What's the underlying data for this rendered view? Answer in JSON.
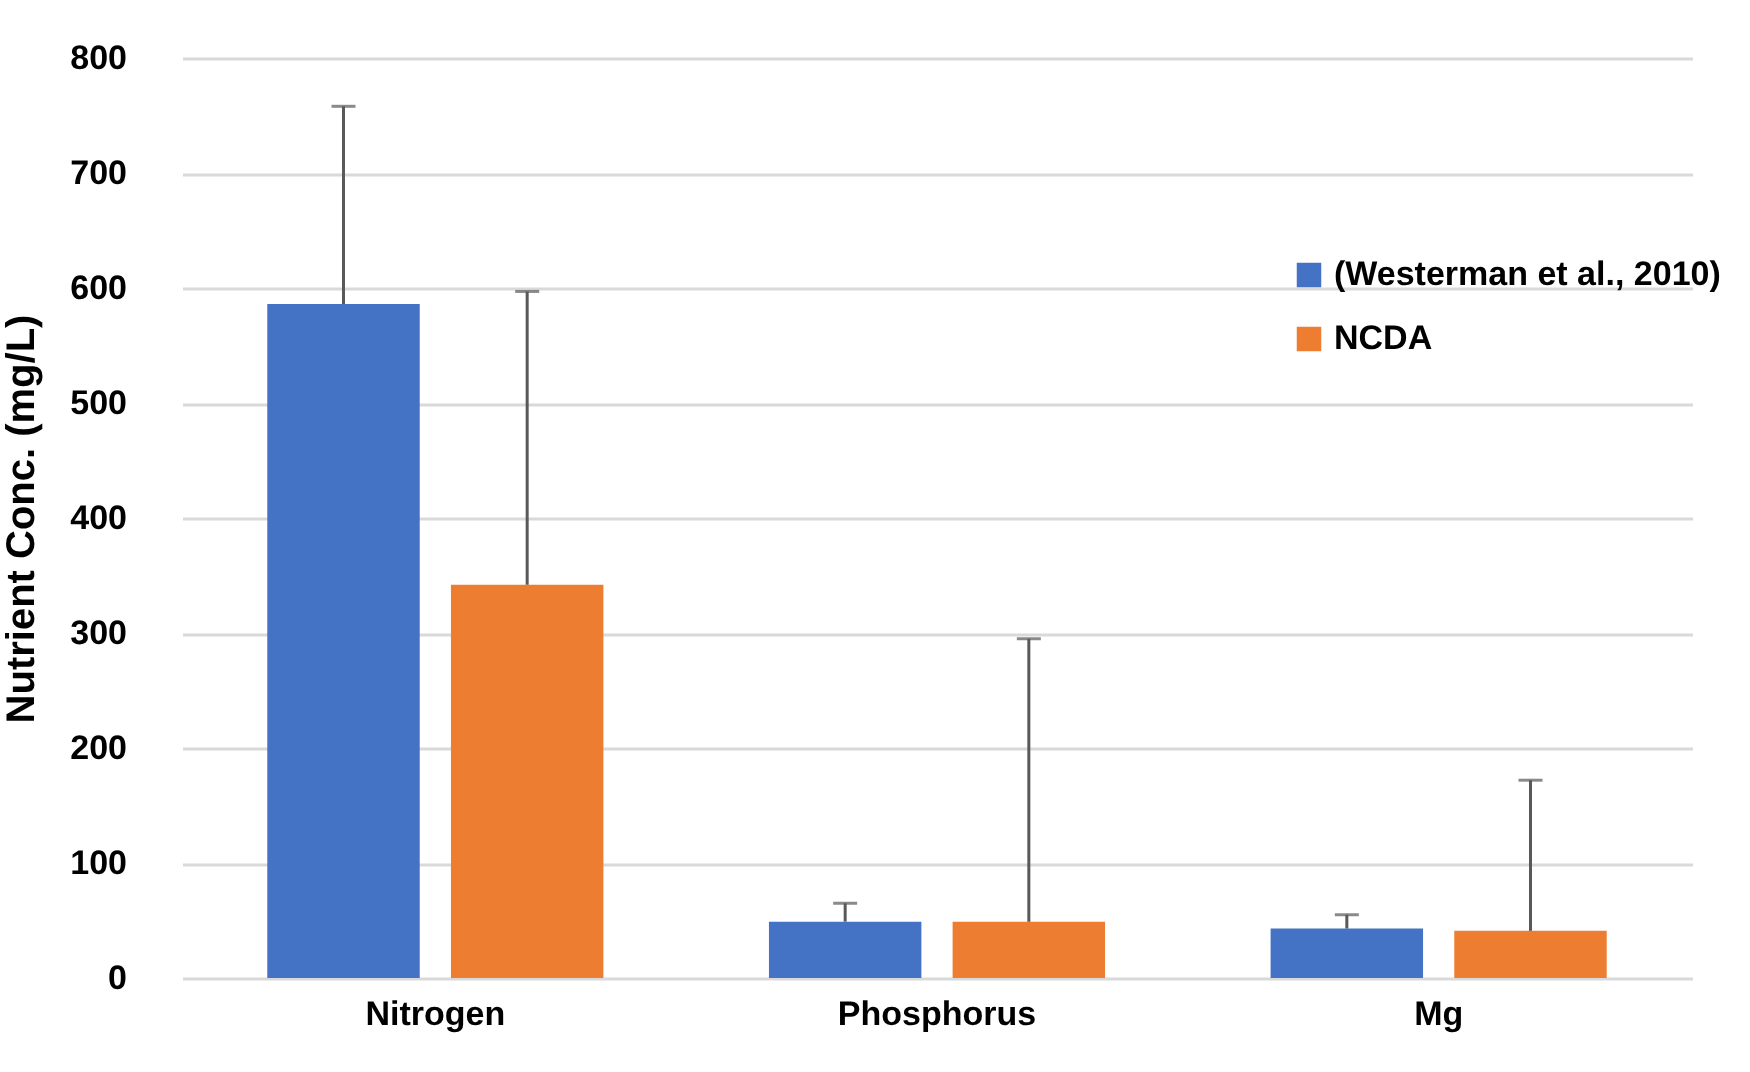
{
  "chart_data": {
    "type": "bar",
    "ylabel": "Nutrient Conc. (mg/L)",
    "categories": [
      "Nitrogen",
      "Phosphorus",
      "Mg"
    ],
    "series": [
      {
        "name": "(Westerman et al., 2010)",
        "color": "#4472c4",
        "values": [
          586,
          49,
          43
        ],
        "errors": [
          [
            586,
            758
          ],
          [
            49,
            65
          ],
          [
            43,
            55
          ]
        ]
      },
      {
        "name": "NCDA",
        "color": "#ed7d31",
        "values": [
          342,
          49,
          41
        ],
        "errors": [
          [
            342,
            597
          ],
          [
            49,
            295
          ],
          [
            41,
            172
          ]
        ]
      }
    ],
    "ylim": [
      0,
      800
    ],
    "yticks": [
      0,
      100,
      200,
      300,
      400,
      500,
      600,
      700,
      800
    ],
    "grid": "y",
    "legend": "top right"
  }
}
